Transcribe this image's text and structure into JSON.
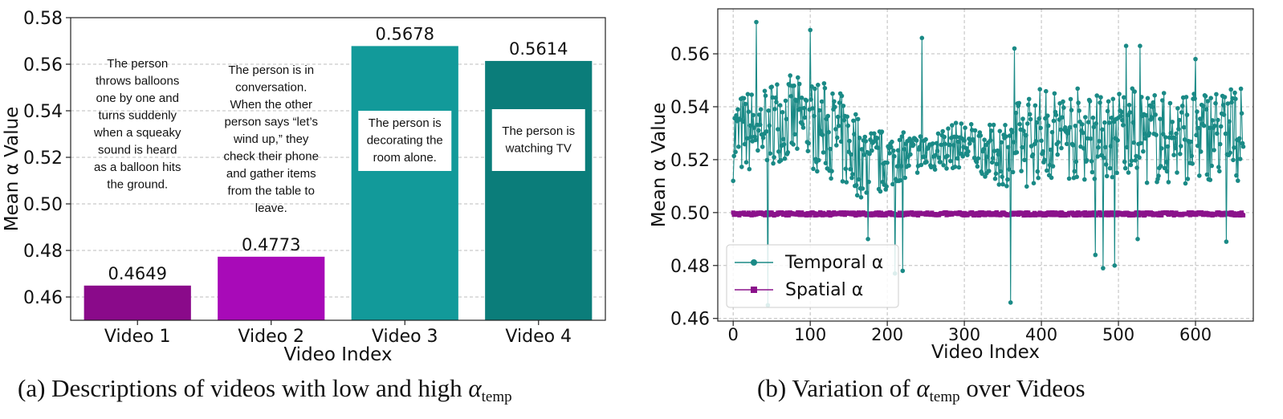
{
  "colors": {
    "video1": "#8a0a8a",
    "video2": "#a80ab8",
    "video3": "#129a9a",
    "video4": "#0b7d7a",
    "temporal": "#1a8a86",
    "spatial": "#8b128b",
    "grid": "#bdbdbd"
  },
  "caption_a": {
    "label": "(a)",
    "text": "Descriptions of videos with low and high",
    "symbol": "α",
    "subscript": "temp"
  },
  "caption_b": {
    "label": "(b)",
    "text": "Variation of",
    "symbol": "α",
    "subscript": "temp",
    "tail": "over Videos"
  },
  "chart_data": [
    {
      "type": "bar",
      "xlabel": "Video Index",
      "ylabel": "Mean α Value",
      "ylim": [
        0.45,
        0.58
      ],
      "yticks": [
        "0.46",
        "0.48",
        "0.50",
        "0.52",
        "0.54",
        "0.56",
        "0.58"
      ],
      "grid": "horizontal dashed",
      "categories": [
        "Video 1",
        "Video 2",
        "Video 3",
        "Video 4"
      ],
      "values": [
        0.4649,
        0.4773,
        0.5678,
        0.5614
      ],
      "value_labels": [
        "0.4649",
        "0.4773",
        "0.5678",
        "0.5614"
      ],
      "annotations": [
        [
          "The person",
          "throws balloons",
          "one by one and",
          "turns suddenly",
          "when a squeaky",
          "sound is heard",
          "as a balloon hits",
          "the ground."
        ],
        [
          "The person is in",
          "conversation.",
          "When the other",
          "person says “let’s",
          "wind up,” they",
          "check their phone",
          "and gather items",
          "from the table to",
          "leave."
        ],
        [
          "The person is",
          "decorating the",
          "room alone."
        ],
        [
          "The person is",
          "watching TV"
        ]
      ]
    },
    {
      "type": "line",
      "xlabel": "Video Index",
      "ylabel": "Mean α Value",
      "xlim": [
        -20,
        675
      ],
      "ylim": [
        0.459,
        0.577
      ],
      "xticks": [
        "0",
        "100",
        "200",
        "300",
        "400",
        "500",
        "600"
      ],
      "yticks": [
        "0.46",
        "0.48",
        "0.50",
        "0.52",
        "0.54",
        "0.56"
      ],
      "grid": "both dashed",
      "legend": "lower-left",
      "n_points": 663,
      "series": [
        {
          "name": "Temporal α",
          "marker": "circle",
          "knots": [
            [
              0,
              0.528
            ],
            [
              60,
              0.536
            ],
            [
              120,
              0.532
            ],
            [
              180,
              0.518
            ],
            [
              230,
              0.522
            ],
            [
              300,
              0.526
            ],
            [
              340,
              0.522
            ],
            [
              400,
              0.53
            ],
            [
              460,
              0.53
            ],
            [
              500,
              0.53
            ],
            [
              560,
              0.528
            ],
            [
              620,
              0.53
            ],
            [
              663,
              0.53
            ]
          ],
          "amplitude": [
            [
              0,
              0.016
            ],
            [
              150,
              0.018
            ],
            [
              230,
              0.008
            ],
            [
              300,
              0.009
            ],
            [
              330,
              0.01
            ],
            [
              380,
              0.018
            ],
            [
              480,
              0.018
            ],
            [
              540,
              0.018
            ],
            [
              663,
              0.018
            ]
          ],
          "extremes": [
            [
              30,
              0.572
            ],
            [
              45,
              0.465
            ],
            [
              100,
              0.569
            ],
            [
              210,
              0.477
            ],
            [
              220,
              0.478
            ],
            [
              245,
              0.566
            ],
            [
              360,
              0.466
            ],
            [
              365,
              0.562
            ],
            [
              470,
              0.484
            ],
            [
              480,
              0.479
            ],
            [
              495,
              0.48
            ],
            [
              510,
              0.563
            ],
            [
              525,
              0.49
            ],
            [
              528,
              0.563
            ],
            [
              600,
              0.558
            ],
            [
              640,
              0.489
            ],
            [
              175,
              0.49
            ]
          ]
        },
        {
          "name": "Spatial α",
          "marker": "square",
          "level": 0.4995,
          "amplitude": 0.0006
        }
      ]
    }
  ]
}
